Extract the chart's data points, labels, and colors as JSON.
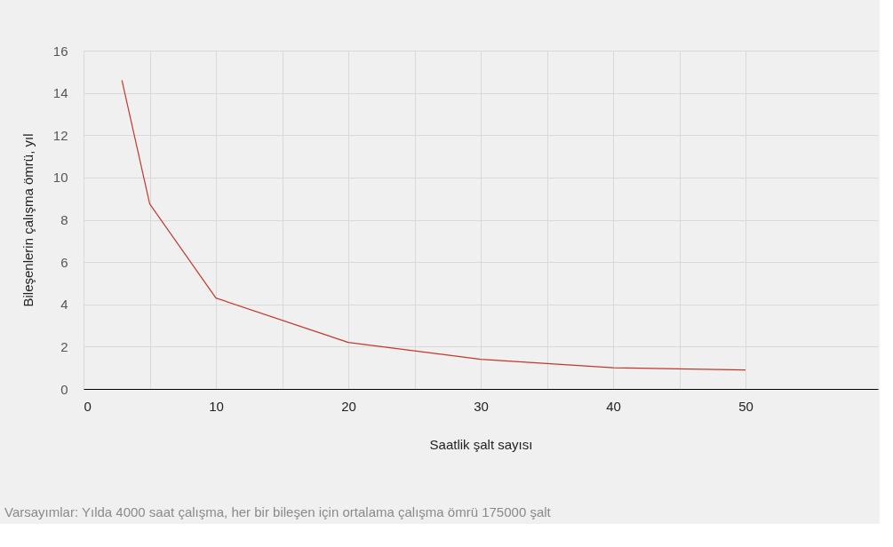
{
  "chart_data": {
    "type": "line",
    "xlabel": "Saatlik şalt sayısı",
    "ylabel": "Bileşenlerin çalışma ömrü, yıl",
    "x": [
      2.9,
      5,
      10,
      20,
      30,
      40,
      50
    ],
    "series": [
      {
        "color": "#c0392b",
        "values": [
          14.6,
          8.75,
          4.3,
          2.2,
          1.4,
          1.0,
          0.9
        ]
      }
    ],
    "xlim": [
      0,
      60
    ],
    "ylim": [
      0,
      16
    ],
    "xticks": [
      0,
      {
        "value": 5,
        "label": null
      },
      10,
      {
        "value": 15,
        "label": null
      },
      20,
      {
        "value": 25,
        "label": null
      },
      30,
      {
        "value": 35,
        "label": null
      },
      40,
      {
        "value": 45,
        "label": null
      },
      50
    ],
    "yticks": [
      0,
      2,
      4,
      6,
      8,
      10,
      12,
      14,
      16
    ],
    "grid": true,
    "marker": "none",
    "line_style": "solid",
    "annotations": [
      "Varsayımlar: Yılda 4000 saat çalışma, her bir bileşen için ortalama çalışma ömrü 175000 şalt"
    ]
  }
}
